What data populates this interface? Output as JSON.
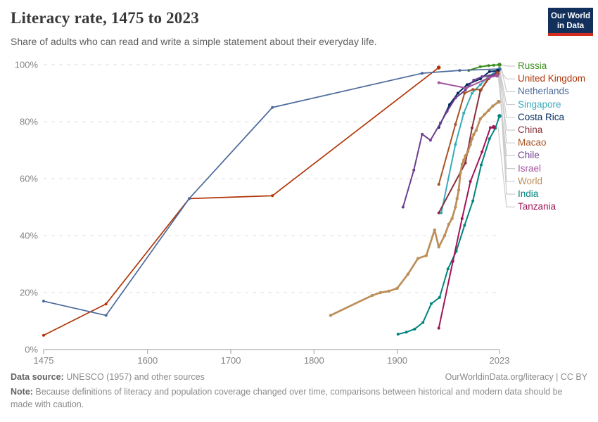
{
  "header": {
    "title": "Literacy rate, 1475 to 2023",
    "subtitle": "Share of adults who can read and write a simple statement about their everyday life.",
    "logo": {
      "line1": "Our World",
      "line2": "in Data",
      "bg": "#12305B",
      "accent": "#D42B21"
    }
  },
  "footer": {
    "source_label": "Data source:",
    "source_text": " UNESCO (1957) and other sources",
    "link": "OurWorldinData.org/literacy | CC BY",
    "note_label": "Note:",
    "note_text": " Because definitions of literacy and population coverage changed over time, comparisons between historical and modern data should be made with caution."
  },
  "chart_data": {
    "type": "line",
    "title": "Literacy rate, 1475 to 2023",
    "xlabel": "",
    "ylabel": "",
    "xlim": [
      1475,
      2023
    ],
    "ylim": [
      0,
      100
    ],
    "x_ticks": [
      1475,
      1600,
      1700,
      1800,
      1900,
      2023
    ],
    "y_ticks": [
      0,
      20,
      40,
      60,
      80,
      100
    ],
    "y_tick_suffix": "%",
    "grid": "horizontal-dashed",
    "legend_position": "right",
    "axis_color": "#9a9a9a",
    "grid_color": "#dcdcdc",
    "connector_color": "#cccccc",
    "series": [
      {
        "name": "Russia",
        "color": "#3B8E1D",
        "width": 2,
        "points": [
          [
            1986,
            98
          ],
          [
            2000,
            99.3
          ],
          [
            2010,
            99.7
          ],
          [
            2016,
            99.8
          ],
          [
            2023,
            100
          ]
        ]
      },
      {
        "name": "United Kingdom",
        "color": "#B13507",
        "width": 1.7,
        "points": [
          [
            1475,
            5
          ],
          [
            1550,
            16
          ],
          [
            1650,
            53
          ],
          [
            1750,
            54
          ],
          [
            1950,
            99
          ]
        ]
      },
      {
        "name": "Netherlands",
        "color": "#4C6A9C",
        "width": 1.7,
        "points": [
          [
            1475,
            17
          ],
          [
            1550,
            12
          ],
          [
            1650,
            53
          ],
          [
            1750,
            85
          ],
          [
            1930,
            97
          ],
          [
            1975,
            98
          ],
          [
            2023,
            98.5
          ]
        ]
      },
      {
        "name": "Singapore",
        "color": "#38AABA",
        "width": 2,
        "points": [
          [
            1953,
            48
          ],
          [
            1970,
            72
          ],
          [
            1980,
            83
          ],
          [
            1990,
            90
          ],
          [
            2000,
            93
          ],
          [
            2010,
            96
          ],
          [
            2021,
            98
          ]
        ]
      },
      {
        "name": "Costa Rica",
        "color": "#00295B",
        "width": 2,
        "points": [
          [
            1950,
            78
          ],
          [
            1963,
            86
          ],
          [
            1973,
            90
          ],
          [
            1984,
            93
          ],
          [
            2000,
            95
          ],
          [
            2011,
            97.6
          ],
          [
            2021,
            97.9
          ]
        ]
      },
      {
        "name": "China",
        "color": "#883039",
        "width": 2,
        "points": [
          [
            1950,
            48
          ],
          [
            1982,
            65.5
          ],
          [
            1990,
            77.8
          ],
          [
            2000,
            90.9
          ],
          [
            2010,
            95.1
          ],
          [
            2020,
            97.2
          ]
        ]
      },
      {
        "name": "Macao",
        "color": "#A65327",
        "width": 2,
        "points": [
          [
            1950,
            58
          ],
          [
            1970,
            79
          ],
          [
            1981,
            90
          ],
          [
            1991,
            91.3
          ],
          [
            2001,
            91.3
          ],
          [
            2011,
            96.1
          ],
          [
            2021,
            96.9
          ]
        ]
      },
      {
        "name": "Chile",
        "color": "#6D3E91",
        "width": 2,
        "points": [
          [
            1907,
            50
          ],
          [
            1920,
            63
          ],
          [
            1930,
            75.6
          ],
          [
            1940,
            73.5
          ],
          [
            1952,
            79.5
          ],
          [
            1960,
            83.6
          ],
          [
            1970,
            88.3
          ],
          [
            1982,
            91.1
          ],
          [
            1992,
            94.6
          ],
          [
            2002,
            95.8
          ],
          [
            2017,
            96.4
          ]
        ]
      },
      {
        "name": "Israel",
        "color": "#A2559C",
        "width": 2,
        "points": [
          [
            1950,
            93.7
          ],
          [
            1983,
            91.8
          ],
          [
            2011,
            95.5
          ],
          [
            2020,
            96.2
          ]
        ]
      },
      {
        "name": "World",
        "color": "#BC8E5A",
        "width": 2.7,
        "points": [
          [
            1820,
            12
          ],
          [
            1870,
            19
          ],
          [
            1880,
            20
          ],
          [
            1890,
            20.5
          ],
          [
            1900,
            21.5
          ],
          [
            1913,
            26.5
          ],
          [
            1925,
            32
          ],
          [
            1935,
            33
          ],
          [
            1945,
            42
          ],
          [
            1950,
            36
          ],
          [
            1957,
            40
          ],
          [
            1962,
            44
          ],
          [
            1966,
            46
          ],
          [
            1970,
            50
          ],
          [
            1972,
            53
          ],
          [
            1974,
            56
          ],
          [
            1976,
            62
          ],
          [
            1978,
            65
          ],
          [
            1980,
            66.5
          ],
          [
            1982,
            68
          ],
          [
            1985,
            69.5
          ],
          [
            1988,
            72
          ],
          [
            1990,
            74
          ],
          [
            1992,
            75.5
          ],
          [
            1995,
            77
          ],
          [
            2000,
            81
          ],
          [
            2005,
            82.5
          ],
          [
            2010,
            84
          ],
          [
            2015,
            85.5
          ],
          [
            2022,
            87
          ]
        ]
      },
      {
        "name": "India",
        "color": "#00847E",
        "width": 2,
        "points": [
          [
            1901,
            5.4
          ],
          [
            1911,
            6.1
          ],
          [
            1921,
            7.2
          ],
          [
            1931,
            9.5
          ],
          [
            1941,
            16.1
          ],
          [
            1951,
            18.3
          ],
          [
            1961,
            28.3
          ],
          [
            1971,
            34.5
          ],
          [
            1981,
            43.6
          ],
          [
            1991,
            52.2
          ],
          [
            2001,
            64.8
          ],
          [
            2011,
            74
          ],
          [
            2018,
            77.7
          ],
          [
            2023,
            82
          ]
        ]
      },
      {
        "name": "Tanzania",
        "color": "#9E1557",
        "width": 2,
        "points": [
          [
            1950,
            7.5
          ],
          [
            1967,
            31
          ],
          [
            1978,
            46
          ],
          [
            1988,
            59
          ],
          [
            2002,
            69.4
          ],
          [
            2012,
            77.9
          ],
          [
            2016,
            78.1
          ]
        ]
      }
    ]
  }
}
